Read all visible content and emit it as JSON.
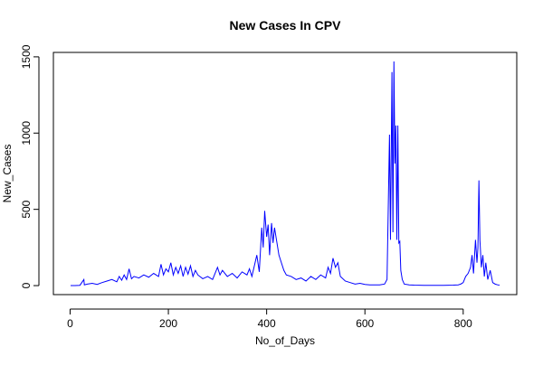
{
  "chart_data": {
    "type": "line",
    "title": "New Cases In CPV",
    "x_label": "No_of_Days",
    "y_label": "New_Cases",
    "x": [
      1,
      10,
      20,
      28,
      29,
      35,
      45,
      55,
      65,
      75,
      85,
      95,
      100,
      105,
      110,
      115,
      120,
      125,
      130,
      140,
      150,
      160,
      170,
      180,
      185,
      190,
      195,
      200,
      205,
      210,
      215,
      220,
      225,
      230,
      235,
      240,
      245,
      250,
      255,
      260,
      270,
      280,
      290,
      295,
      300,
      305,
      310,
      320,
      330,
      340,
      350,
      360,
      365,
      370,
      375,
      380,
      385,
      390,
      393,
      396,
      400,
      403,
      406,
      410,
      413,
      416,
      420,
      425,
      430,
      435,
      440,
      450,
      460,
      470,
      480,
      490,
      500,
      510,
      520,
      525,
      530,
      535,
      540,
      545,
      550,
      560,
      570,
      580,
      590,
      600,
      610,
      620,
      630,
      640,
      645,
      650,
      652,
      655,
      657,
      659,
      661,
      663,
      665,
      667,
      669,
      671,
      673,
      676,
      680,
      690,
      700,
      720,
      740,
      760,
      780,
      790,
      795,
      800,
      805,
      810,
      815,
      818,
      821,
      825,
      828,
      830,
      832,
      834,
      837,
      840,
      843,
      846,
      850,
      855,
      860,
      865,
      870,
      874
    ],
    "series": [
      {
        "color": "#0000ff",
        "values": [
          0,
          0,
          2,
          40,
          5,
          10,
          15,
          8,
          20,
          30,
          40,
          25,
          60,
          35,
          70,
          40,
          110,
          45,
          60,
          50,
          70,
          55,
          80,
          60,
          140,
          70,
          110,
          90,
          150,
          70,
          120,
          80,
          130,
          60,
          120,
          75,
          130,
          60,
          100,
          70,
          45,
          60,
          40,
          80,
          120,
          70,
          100,
          60,
          80,
          50,
          90,
          70,
          110,
          60,
          130,
          200,
          90,
          380,
          250,
          490,
          320,
          400,
          200,
          410,
          280,
          380,
          300,
          200,
          150,
          100,
          70,
          60,
          40,
          50,
          30,
          60,
          40,
          70,
          50,
          120,
          80,
          180,
          120,
          150,
          60,
          30,
          20,
          10,
          15,
          8,
          5,
          5,
          5,
          10,
          40,
          990,
          300,
          1400,
          350,
          1470,
          800,
          1050,
          300,
          1050,
          280,
          290,
          100,
          40,
          10,
          5,
          3,
          2,
          2,
          2,
          3,
          5,
          10,
          20,
          60,
          80,
          120,
          200,
          80,
          300,
          150,
          250,
          690,
          300,
          120,
          200,
          60,
          150,
          40,
          100,
          20,
          10,
          5,
          3
        ]
      }
    ],
    "xlim": [
      -34,
      909
    ],
    "ylim": [
      -59,
      1529
    ],
    "xticks": [
      0,
      200,
      400,
      600,
      800
    ],
    "yticks": [
      0,
      500,
      1000,
      1500
    ]
  }
}
